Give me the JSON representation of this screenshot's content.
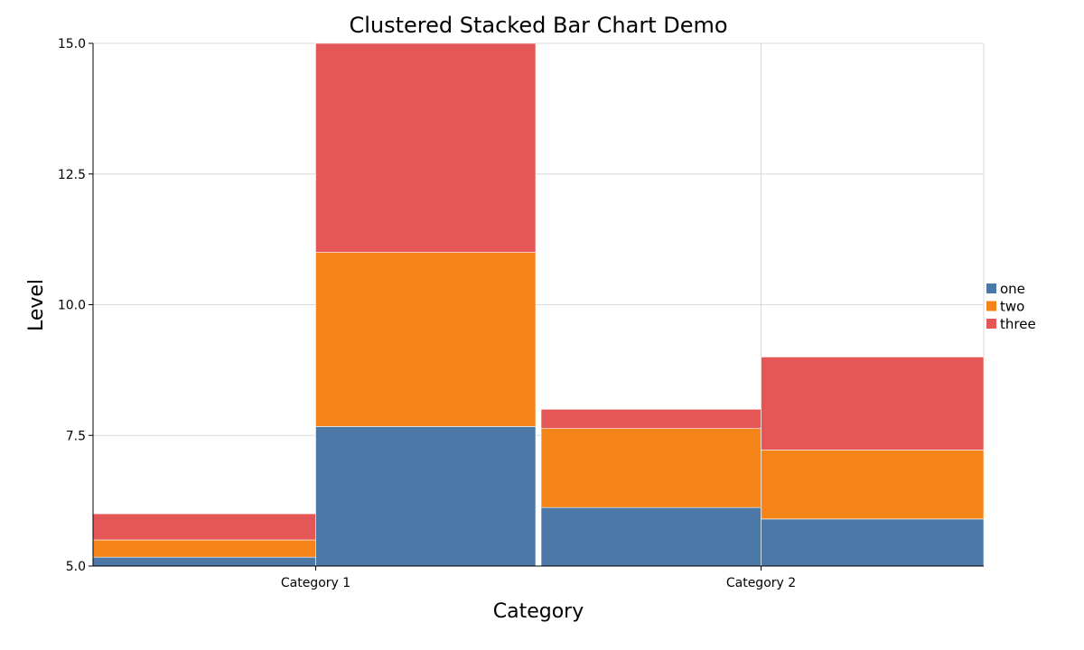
{
  "chart_data": {
    "type": "bar",
    "title": "Clustered Stacked Bar Chart Demo",
    "xlabel": "Category",
    "ylabel": "Level",
    "ylim": [
      5,
      15
    ],
    "y_ticks": [
      "5.0",
      "7.5",
      "10.0",
      "12.5",
      "15.0"
    ],
    "y_tick_values": [
      5,
      7.5,
      10,
      12.5,
      15
    ],
    "categories": [
      "Category 1",
      "Category 2"
    ],
    "clusters_per_category": 2,
    "bars": [
      {
        "category": "Category 1",
        "segments": [
          {
            "series": "one",
            "from": 5.0,
            "to": 5.17
          },
          {
            "series": "two",
            "from": 5.17,
            "to": 5.5
          },
          {
            "series": "three",
            "from": 5.5,
            "to": 6.0
          }
        ]
      },
      {
        "category": "Category 1",
        "segments": [
          {
            "series": "one",
            "from": 5.0,
            "to": 7.67
          },
          {
            "series": "two",
            "from": 7.67,
            "to": 11.0
          },
          {
            "series": "three",
            "from": 11.0,
            "to": 15.0
          }
        ]
      },
      {
        "category": "Category 2",
        "segments": [
          {
            "series": "one",
            "from": 5.0,
            "to": 6.12
          },
          {
            "series": "two",
            "from": 6.12,
            "to": 7.63
          },
          {
            "series": "three",
            "from": 7.63,
            "to": 8.0
          }
        ]
      },
      {
        "category": "Category 2",
        "segments": [
          {
            "series": "one",
            "from": 5.0,
            "to": 5.9
          },
          {
            "series": "two",
            "from": 5.9,
            "to": 7.22
          },
          {
            "series": "three",
            "from": 7.22,
            "to": 9.0
          }
        ]
      }
    ],
    "series": [
      {
        "name": "one",
        "color": "#4c78a8"
      },
      {
        "name": "two",
        "color": "#f58518"
      },
      {
        "name": "three",
        "color": "#e45756"
      }
    ],
    "grid": true,
    "legend_position": "right"
  }
}
